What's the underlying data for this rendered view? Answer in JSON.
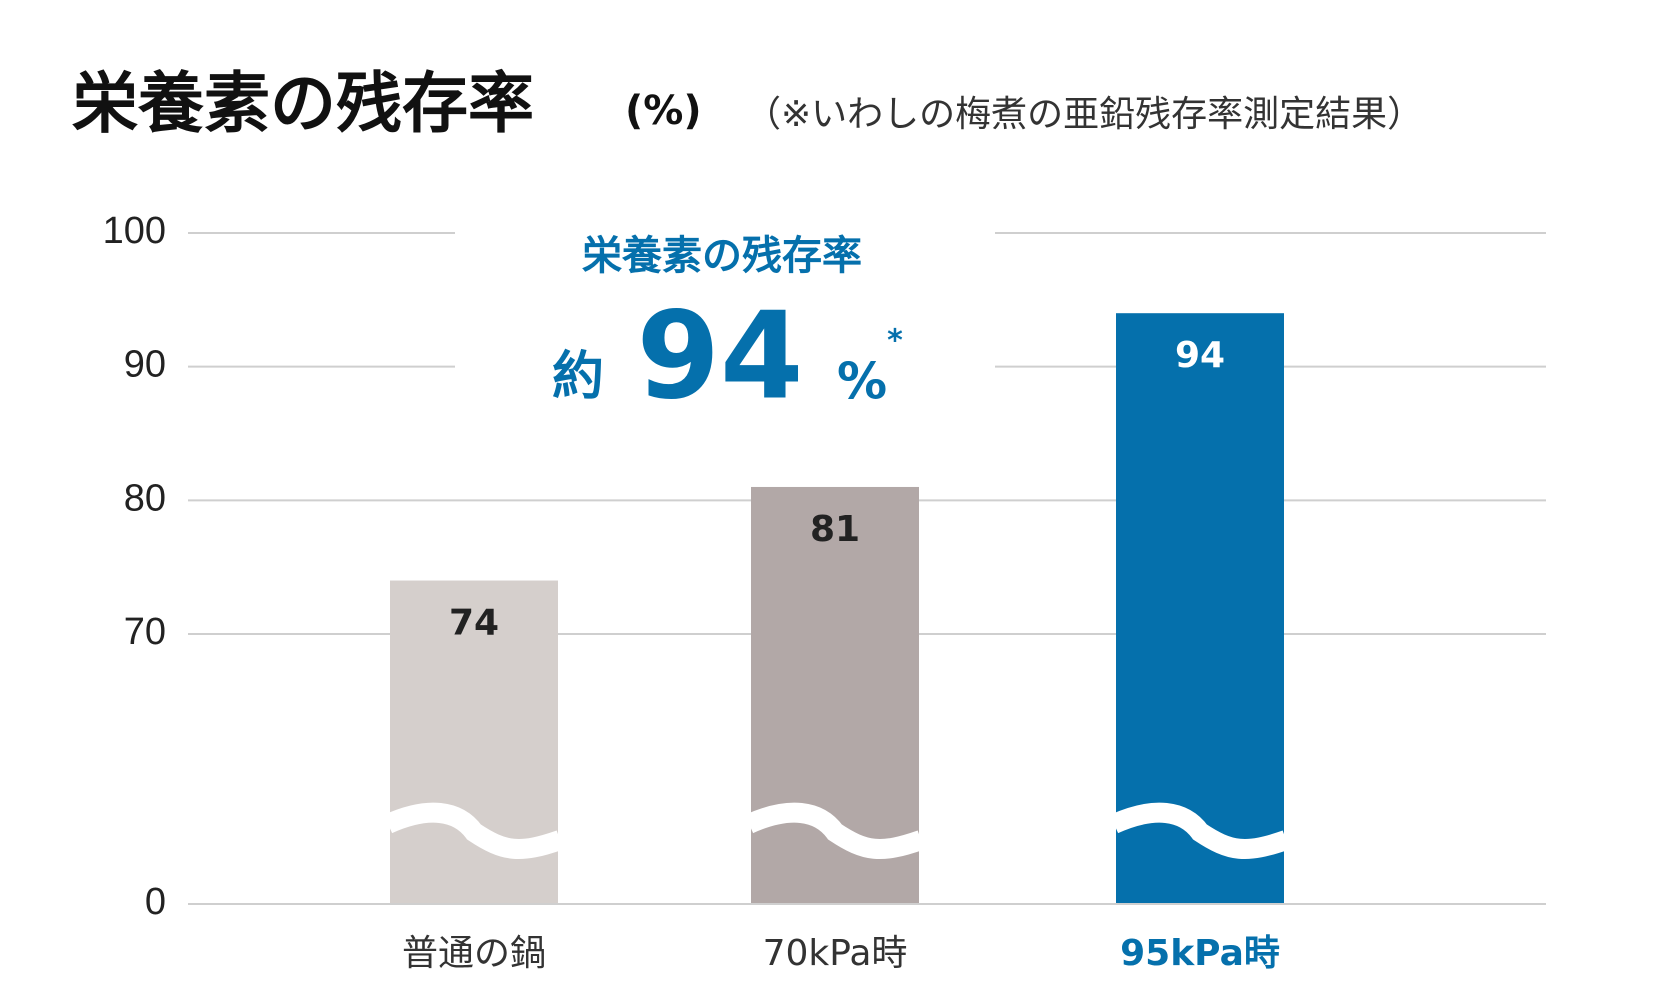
{
  "chart_data": {
    "type": "bar",
    "title": "栄養素の残存率",
    "unit_label": "(%)",
    "subtitle": "（※いわしの梅煮の亜鉛残存率測定結果）",
    "categories": [
      "普通の鍋",
      "70kPa時",
      "95kPa時"
    ],
    "values": [
      74,
      81,
      94
    ],
    "colors": [
      "#d5cfcc",
      "#b2a8a7",
      "#0570ac"
    ],
    "ylim": [
      0,
      100
    ],
    "yticks": [
      0,
      70,
      80,
      90,
      100
    ],
    "axis_break": true,
    "grid": true,
    "annotation": {
      "title": "栄養素の残存率",
      "prefix": "約",
      "value": 94,
      "unit": "%",
      "note": "*"
    }
  }
}
